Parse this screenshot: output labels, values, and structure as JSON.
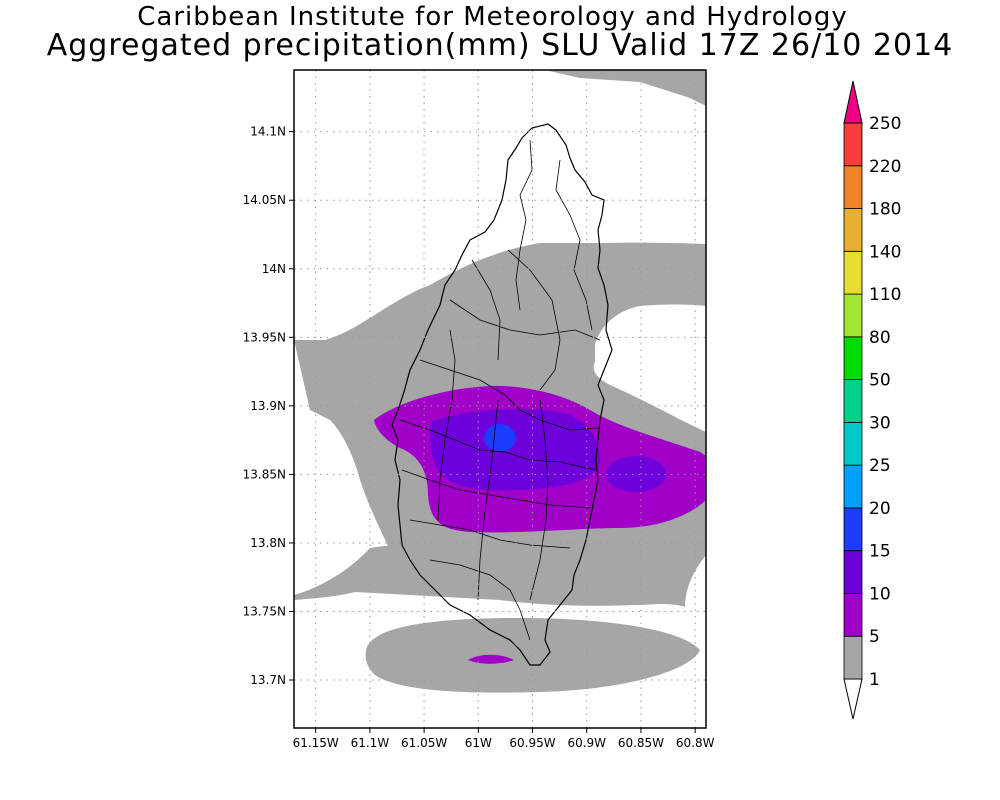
{
  "header": {
    "title_line1": "Caribbean Institute for Meteorology and Hydrology",
    "title_line2": "Aggregated precipitation(mm) SLU Valid 17Z 26/10 2014"
  },
  "map": {
    "lon_range": [
      -61.17,
      -60.79
    ],
    "lat_range": [
      13.665,
      14.145
    ],
    "lon_ticks": [
      {
        "value": -61.15,
        "label": "61.15W"
      },
      {
        "value": -61.1,
        "label": "61.1W"
      },
      {
        "value": -61.05,
        "label": "61.05W"
      },
      {
        "value": -61.0,
        "label": "61W"
      },
      {
        "value": -60.95,
        "label": "60.95W"
      },
      {
        "value": -60.9,
        "label": "60.9W"
      },
      {
        "value": -60.85,
        "label": "60.85W"
      },
      {
        "value": -60.8,
        "label": "60.8W"
      }
    ],
    "lat_ticks": [
      {
        "value": 14.1,
        "label": "14.1N"
      },
      {
        "value": 14.05,
        "label": "14.05N"
      },
      {
        "value": 14.0,
        "label": "14N"
      },
      {
        "value": 13.95,
        "label": "13.95N"
      },
      {
        "value": 13.9,
        "label": "13.9N"
      },
      {
        "value": 13.85,
        "label": "13.85N"
      },
      {
        "value": 13.8,
        "label": "13.8N"
      },
      {
        "value": 13.75,
        "label": "13.75N"
      },
      {
        "value": 13.7,
        "label": "13.7N"
      }
    ],
    "grid": "dotted"
  },
  "legend": {
    "orientation": "vertical",
    "placement": "right",
    "levels": [
      "1",
      "5",
      "10",
      "15",
      "20",
      "25",
      "30",
      "50",
      "80",
      "110",
      "140",
      "180",
      "220",
      "250"
    ],
    "colors": [
      "#a6a6a6",
      "#a000c8",
      "#6e00dc",
      "#1e3cff",
      "#00a0ff",
      "#00c8c8",
      "#00d28c",
      "#00dc00",
      "#a0e632",
      "#e6dc32",
      "#e6af2d",
      "#f08228",
      "#fa3c3c",
      "#f00082"
    ],
    "below_min_color": "#ffffff",
    "above_max_color": "#f00082"
  },
  "colors": {
    "grey_shade": "#a6a6a6",
    "purple_5": "#a000c8",
    "purple_10": "#6e00dc",
    "blue_15": "#1e3cff"
  }
}
